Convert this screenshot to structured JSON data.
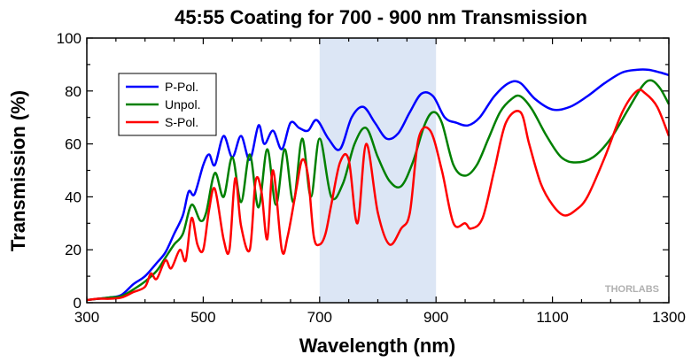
{
  "chart_data": {
    "type": "line",
    "title": "45:55 Coating for 700 - 900 nm Transmission",
    "xlabel": "Wavelength (nm)",
    "ylabel": "Transmission (%)",
    "xlim": [
      300,
      1300
    ],
    "ylim": [
      0,
      100
    ],
    "xticks": [
      300,
      500,
      700,
      900,
      1100,
      1300
    ],
    "yticks": [
      0,
      20,
      40,
      60,
      80,
      100
    ],
    "grid": false,
    "legend_position": "top-left",
    "shaded_region": {
      "x_start": 700,
      "x_end": 900,
      "color": "#dce6f5"
    },
    "watermark": "THORLABS",
    "series": [
      {
        "name": "P-Pol.",
        "color": "#0000ff",
        "x": [
          300,
          320,
          340,
          360,
          380,
          400,
          420,
          435,
          450,
          465,
          475,
          485,
          500,
          510,
          520,
          535,
          550,
          565,
          580,
          595,
          605,
          620,
          635,
          650,
          665,
          680,
          695,
          715,
          735,
          755,
          775,
          795,
          815,
          835,
          855,
          875,
          895,
          915,
          935,
          955,
          975,
          1000,
          1025,
          1045,
          1070,
          1100,
          1130,
          1160,
          1190,
          1220,
          1245,
          1265,
          1285,
          1300
        ],
        "y": [
          1,
          1.5,
          2,
          3,
          7,
          10,
          15,
          19,
          26,
          33,
          42,
          41,
          52,
          56,
          52,
          63,
          55,
          63,
          54,
          67,
          60,
          65,
          58,
          68,
          66,
          65,
          69,
          62,
          58,
          70,
          74,
          68,
          62,
          64,
          72,
          79,
          78,
          70,
          68,
          67,
          70,
          78,
          83,
          83,
          77,
          73,
          74,
          78,
          83,
          87,
          88,
          88,
          87,
          86
        ]
      },
      {
        "name": "Unpol.",
        "color": "#008000",
        "x": [
          300,
          320,
          340,
          360,
          380,
          400,
          420,
          435,
          450,
          465,
          480,
          495,
          505,
          520,
          535,
          550,
          565,
          580,
          595,
          610,
          625,
          640,
          655,
          670,
          685,
          700,
          720,
          740,
          760,
          780,
          800,
          820,
          840,
          860,
          880,
          895,
          910,
          930,
          950,
          970,
          990,
          1010,
          1030,
          1045,
          1065,
          1090,
          1115,
          1140,
          1170,
          1200,
          1230,
          1255,
          1270,
          1285,
          1300
        ],
        "y": [
          1,
          1.5,
          2,
          2.5,
          5,
          8,
          12,
          17,
          22,
          26,
          37,
          31,
          34,
          49,
          40,
          55,
          38,
          56,
          36,
          58,
          37,
          58,
          38,
          62,
          40,
          62,
          40,
          45,
          60,
          66,
          55,
          46,
          44,
          53,
          67,
          72,
          68,
          52,
          48,
          52,
          62,
          72,
          77,
          78,
          73,
          63,
          55,
          53,
          55,
          62,
          73,
          82,
          84,
          81,
          75
        ]
      },
      {
        "name": "S-Pol.",
        "color": "#ff0000",
        "x": [
          300,
          320,
          340,
          360,
          380,
          400,
          410,
          420,
          435,
          445,
          460,
          470,
          480,
          490,
          500,
          510,
          520,
          535,
          545,
          555,
          565,
          580,
          590,
          600,
          610,
          620,
          635,
          645,
          660,
          670,
          680,
          690,
          700,
          710,
          720,
          735,
          750,
          765,
          780,
          800,
          820,
          840,
          855,
          870,
          890,
          910,
          930,
          950,
          960,
          980,
          1000,
          1020,
          1045,
          1060,
          1080,
          1100,
          1120,
          1140,
          1160,
          1190,
          1220,
          1245,
          1260,
          1280,
          1300
        ],
        "y": [
          1,
          1.5,
          1.5,
          2,
          4,
          6,
          11,
          9,
          16,
          13,
          20,
          16,
          32,
          22,
          20,
          35,
          43,
          24,
          20,
          47,
          29,
          20,
          46,
          42,
          24,
          50,
          20,
          25,
          43,
          54,
          48,
          25,
          22,
          26,
          37,
          53,
          54,
          30,
          60,
          34,
          22,
          28,
          34,
          62,
          65,
          50,
          30,
          30,
          28,
          32,
          50,
          68,
          72,
          60,
          45,
          37,
          33,
          35,
          40,
          55,
          72,
          80,
          79,
          74,
          63
        ]
      }
    ]
  }
}
